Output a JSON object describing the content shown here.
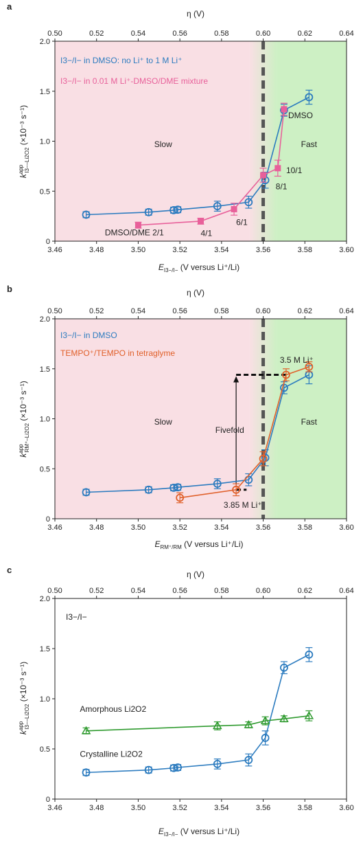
{
  "chart_data": [
    {
      "panel": "a",
      "type": "line",
      "top_axis_label": "η (V)",
      "top_ticks": [
        "0.50",
        "0.52",
        "0.54",
        "0.56",
        "0.58",
        "0.60",
        "0.62",
        "0.64"
      ],
      "xlabel_main": "E",
      "xlabel_sub": "I3−/I−",
      "xlabel_rest": " (V versus Li⁺/Li)",
      "ylabel_main": "k",
      "ylabel_sup": "app",
      "ylabel_sub": "I3−–Li2O2",
      "ylabel_rest": " (×10⁻³ s⁻¹)",
      "x_ticks": [
        "3.46",
        "3.48",
        "3.50",
        "3.52",
        "3.54",
        "3.56",
        "3.58",
        "3.60"
      ],
      "y_ticks": [
        "0",
        "0.5",
        "1.0",
        "1.5",
        "2.0"
      ],
      "xlim": [
        3.46,
        3.6
      ],
      "ylim": [
        0,
        2.0
      ],
      "regions": [
        {
          "label": "Slow",
          "x_from": 3.46,
          "x_to": 3.56,
          "color": "#f9dfe4"
        },
        {
          "label": "Fast",
          "x_from": 3.56,
          "x_to": 3.6,
          "color": "#cdf0c4"
        }
      ],
      "threshold_x": 3.56,
      "legend": [
        {
          "text": "I3−/I− in DMSO: no Li⁺ to 1 M Li⁺",
          "color": "#2b7bbf"
        },
        {
          "text": "I3−/I− in 0.01 M Li⁺-DMSO/DME mixture",
          "color": "#e8609a"
        }
      ],
      "series": [
        {
          "color": "#2b7bbf",
          "marker": "circle",
          "x": [
            3.475,
            3.505,
            3.517,
            3.519,
            3.538,
            3.553,
            3.561,
            3.57,
            3.582
          ],
          "y": [
            0.265,
            0.29,
            0.31,
            0.315,
            0.35,
            0.39,
            0.61,
            1.31,
            1.44
          ],
          "err": [
            0.03,
            0.03,
            0.03,
            0.03,
            0.05,
            0.06,
            0.08,
            0.06,
            0.07
          ]
        },
        {
          "color": "#e8609a",
          "marker": "square",
          "x": [
            3.5,
            3.53,
            3.546,
            3.56,
            3.567,
            3.57
          ],
          "y": [
            0.16,
            0.2,
            0.32,
            0.66,
            0.73,
            1.32
          ],
          "err": [
            0.03,
            0.03,
            0.06,
            0.07,
            0.08,
            0.06
          ]
        }
      ],
      "annotations": [
        {
          "text": "DMSO/DME 2/1",
          "x": 3.484,
          "y": 0.06,
          "color": "#e8609a"
        },
        {
          "text": "4/1",
          "x": 3.53,
          "y": 0.05,
          "color": "#e8609a"
        },
        {
          "text": "6/1",
          "x": 3.547,
          "y": 0.16,
          "color": "#e8609a"
        },
        {
          "text": "8/1",
          "x": 3.566,
          "y": 0.52,
          "color": "#e8609a"
        },
        {
          "text": "10/1",
          "x": 3.571,
          "y": 0.68,
          "color": "#e8609a"
        },
        {
          "text": "DMSO",
          "x": 3.572,
          "y": 1.23,
          "color": "#e8609a"
        }
      ]
    },
    {
      "panel": "b",
      "type": "line",
      "top_axis_label": "η (V)",
      "top_ticks": [
        "0.50",
        "0.52",
        "0.54",
        "0.56",
        "0.58",
        "0.60",
        "0.62",
        "0.64"
      ],
      "xlabel_main": "E",
      "xlabel_sub": "RM⁺/RM",
      "xlabel_rest": " (V versus Li⁺/Li)",
      "ylabel_main": "k",
      "ylabel_sup": "app",
      "ylabel_sub": "RM⁺–Li2O2",
      "ylabel_rest": " (×10⁻³ s⁻¹)",
      "x_ticks": [
        "3.46",
        "3.48",
        "3.50",
        "3.52",
        "3.54",
        "3.56",
        "3.58",
        "3.60"
      ],
      "y_ticks": [
        "0",
        "0.5",
        "1.0",
        "1.5",
        "2.0"
      ],
      "xlim": [
        3.46,
        3.6
      ],
      "ylim": [
        0,
        2.0
      ],
      "regions": [
        {
          "label": "Slow",
          "x_from": 3.46,
          "x_to": 3.56,
          "color": "#f9dfe4"
        },
        {
          "label": "Fast",
          "x_from": 3.56,
          "x_to": 3.6,
          "color": "#cdf0c4"
        }
      ],
      "threshold_x": 3.56,
      "legend": [
        {
          "text": "I3−/I− in DMSO",
          "color": "#2b7bbf"
        },
        {
          "text": "TEMPO⁺/TEMPO in tetraglyme",
          "color": "#e0602a"
        }
      ],
      "series": [
        {
          "color": "#2b7bbf",
          "marker": "circle",
          "x": [
            3.475,
            3.505,
            3.517,
            3.519,
            3.538,
            3.553,
            3.561,
            3.57,
            3.582
          ],
          "y": [
            0.265,
            0.29,
            0.31,
            0.315,
            0.35,
            0.39,
            0.61,
            1.31,
            1.44
          ],
          "err": [
            0.03,
            0.03,
            0.03,
            0.03,
            0.05,
            0.06,
            0.08,
            0.06,
            0.09
          ]
        },
        {
          "color": "#e0602a",
          "marker": "circle",
          "x": [
            3.52,
            3.547,
            3.56,
            3.571,
            3.582
          ],
          "y": [
            0.21,
            0.29,
            0.6,
            1.44,
            1.52
          ],
          "err": [
            0.05,
            0.06,
            0.07,
            0.06,
            0.05
          ]
        }
      ],
      "annotations": [
        {
          "text": "3.5 M Li⁺",
          "x": 3.568,
          "y": 1.56,
          "color": "#e0602a"
        },
        {
          "text": "3.85 M Li⁺",
          "x": 3.541,
          "y": 0.11,
          "color": "#e0602a"
        },
        {
          "text": "Fivefold",
          "x": 3.537,
          "y": 0.86,
          "color": "#222222"
        }
      ]
    },
    {
      "panel": "c",
      "type": "line",
      "top_axis_label": "η (V)",
      "top_ticks": [
        "0.50",
        "0.52",
        "0.54",
        "0.56",
        "0.58",
        "0.60",
        "0.62",
        "0.64"
      ],
      "xlabel_main": "E",
      "xlabel_sub": "I3−/I−",
      "xlabel_rest": " (V versus Li⁺/Li)",
      "ylabel_main": "k",
      "ylabel_sup": "app",
      "ylabel_sub": "I3−–Li2O2",
      "ylabel_rest": " (×10⁻³ s⁻¹)",
      "x_ticks": [
        "3.46",
        "3.48",
        "3.50",
        "3.52",
        "3.54",
        "3.56",
        "3.58",
        "3.60"
      ],
      "y_ticks": [
        "0",
        "0.5",
        "1.0",
        "1.5",
        "2.0"
      ],
      "xlim": [
        3.46,
        3.6
      ],
      "ylim": [
        0,
        2.0
      ],
      "inner_label": "I3−/I−",
      "series": [
        {
          "color": "#2b7bbf",
          "marker": "circle",
          "x": [
            3.475,
            3.505,
            3.517,
            3.519,
            3.538,
            3.553,
            3.561,
            3.57,
            3.582
          ],
          "y": [
            0.265,
            0.29,
            0.31,
            0.315,
            0.35,
            0.39,
            0.61,
            1.31,
            1.44
          ],
          "err": [
            0.03,
            0.03,
            0.03,
            0.03,
            0.05,
            0.06,
            0.07,
            0.06,
            0.07
          ]
        },
        {
          "color": "#2e9a2e",
          "marker": "triangle",
          "x": [
            3.475,
            3.538,
            3.553,
            3.561,
            3.57,
            3.582
          ],
          "y": [
            0.68,
            0.73,
            0.74,
            0.78,
            0.8,
            0.83
          ],
          "err": [
            0.03,
            0.04,
            0.03,
            0.04,
            0.03,
            0.05
          ]
        }
      ],
      "annotations": [
        {
          "text": "Amorphous Li2O2",
          "x": 3.472,
          "y": 0.87,
          "color": "#2e9a2e"
        },
        {
          "text": "Crystalline Li2O2",
          "x": 3.472,
          "y": 0.42,
          "color": "#2b7bbf"
        }
      ]
    }
  ]
}
